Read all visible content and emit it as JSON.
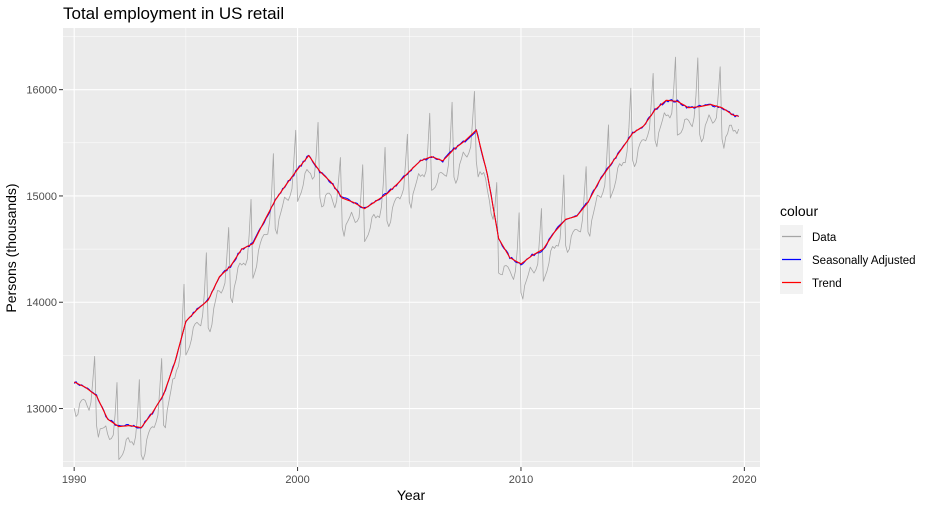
{
  "chart_data": {
    "type": "line",
    "title": "Total employment in US retail",
    "xlabel": "Year",
    "ylabel": "Persons (thousands)",
    "xlim": [
      1989.5,
      2020.7
    ],
    "ylim": [
      12450,
      16580
    ],
    "x_ticks": [
      1990,
      2000,
      2010,
      2020
    ],
    "x_tick_labels": [
      "1990",
      "2000",
      "2010",
      "2020"
    ],
    "y_ticks": [
      13000,
      14000,
      15000,
      16000
    ],
    "y_tick_labels": [
      "13000",
      "14000",
      "15000",
      "16000"
    ],
    "grid": true,
    "legend": {
      "title": "colour",
      "position": "right",
      "entries": [
        "Data",
        "Seasonally Adjusted",
        "Trend"
      ]
    },
    "colors": {
      "Data": "#a6a6a6",
      "Seasonally Adjusted": "#0000ff",
      "Trend": "#ff0000",
      "panel": "#ebebeb",
      "grid": "#ffffff"
    },
    "frequency": "monthly",
    "series": [
      {
        "name": "Trend",
        "x": [
          1990.0,
          1990.5,
          1991.0,
          1991.5,
          1992.0,
          1992.5,
          1993.0,
          1993.5,
          1994.0,
          1994.5,
          1995.0,
          1995.5,
          1996.0,
          1996.5,
          1997.0,
          1997.5,
          1998.0,
          1998.5,
          1999.0,
          1999.5,
          2000.0,
          2000.5,
          2001.0,
          2001.5,
          2002.0,
          2002.5,
          2003.0,
          2003.5,
          2004.0,
          2004.5,
          2005.0,
          2005.5,
          2006.0,
          2006.5,
          2007.0,
          2007.5,
          2008.0,
          2008.5,
          2009.0,
          2009.5,
          2010.0,
          2010.5,
          2011.0,
          2011.5,
          2012.0,
          2012.5,
          2013.0,
          2013.5,
          2014.0,
          2014.5,
          2015.0,
          2015.5,
          2016.0,
          2016.5,
          2017.0,
          2017.5,
          2018.0,
          2018.5,
          2019.0,
          2019.5,
          2019.75
        ],
        "values": [
          13250,
          13200,
          13120,
          12900,
          12830,
          12840,
          12820,
          12960,
          13130,
          13430,
          13820,
          13930,
          14020,
          14240,
          14340,
          14500,
          14550,
          14760,
          14960,
          15110,
          15250,
          15380,
          15230,
          15130,
          14980,
          14940,
          14880,
          14950,
          15020,
          15120,
          15230,
          15330,
          15370,
          15330,
          15440,
          15520,
          15620,
          15200,
          14600,
          14420,
          14360,
          14440,
          14500,
          14660,
          14780,
          14810,
          14940,
          15140,
          15290,
          15440,
          15590,
          15660,
          15810,
          15900,
          15890,
          15830,
          15840,
          15860,
          15830,
          15760,
          15750
        ]
      },
      {
        "name": "Data",
        "note_x": "monthly values; x = year + (month-1)/12",
        "x_start": 1990.0,
        "x_step": 0.0833333,
        "seasonal_pattern": [
          -290,
          -330,
          -270,
          -200,
          -140,
          -110,
          -140,
          -160,
          -170,
          -110,
          110,
          420
        ]
      }
    ]
  }
}
